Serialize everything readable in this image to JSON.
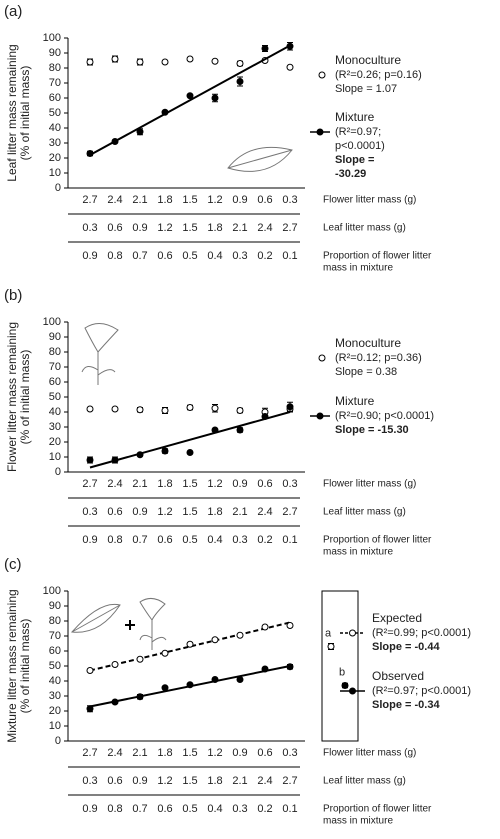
{
  "chart_data": [
    {
      "type": "scatter",
      "panel_label": "(a)",
      "ylabel": [
        "Leaf litter mass remaining",
        "(% of initial mass)"
      ],
      "ylim": [
        0,
        100
      ],
      "yticks": [
        0,
        10,
        20,
        30,
        40,
        50,
        60,
        70,
        80,
        90,
        100
      ],
      "categories": [
        "2.7",
        "2.4",
        "2.1",
        "1.8",
        "1.5",
        "1.2",
        "0.9",
        "0.6",
        "0.3"
      ],
      "row_label": "Flower litter mass (g)",
      "rows": [
        {
          "label": [
            "Leaf litter mass (g)"
          ],
          "values": [
            "0.3",
            "0.6",
            "0.9",
            "1.2",
            "1.5",
            "1.8",
            "2.1",
            "2.4",
            "2.7"
          ]
        },
        {
          "label": [
            "Proportion of flower litter",
            "mass in mixture"
          ],
          "values": [
            "0.9",
            "0.8",
            "0.7",
            "0.6",
            "0.5",
            "0.4",
            "0.3",
            "0.2",
            "0.1"
          ]
        }
      ],
      "series": [
        {
          "name": "Monoculture",
          "color": "#000000",
          "filled": false,
          "stats": [
            "(R²=0.26; p=0.16)"
          ],
          "slope": [
            "Slope = 1.07"
          ],
          "slope_bold": false,
          "values": [
            84,
            86,
            84,
            84,
            86,
            84.5,
            83,
            85,
            80.5
          ],
          "errors": [
            2,
            2,
            2,
            1,
            1,
            0.5,
            1.5,
            0.5,
            0.5
          ]
        },
        {
          "name": "Mixture",
          "color": "#000000",
          "filled": true,
          "stats": [
            "(R²=0.97;",
            "p<0.0001)"
          ],
          "slope": [
            "Slope =",
            "-30.29"
          ],
          "slope_bold": true,
          "values": [
            23,
            31,
            37.5,
            50.5,
            61.5,
            60,
            71,
            93,
            94.5
          ],
          "errors": [
            1.5,
            1,
            2,
            0.5,
            0.5,
            2.5,
            3,
            2,
            2.5
          ],
          "fit": [
            22,
            95
          ],
          "dashed": false
        }
      ]
    },
    {
      "type": "scatter",
      "panel_label": "(b)",
      "ylabel": [
        "Flower litter mass remaining",
        "(% of initial mass)"
      ],
      "ylim": [
        0,
        100
      ],
      "yticks": [
        0,
        10,
        20,
        30,
        40,
        50,
        60,
        70,
        80,
        90,
        100
      ],
      "categories": [
        "2.7",
        "2.4",
        "2.1",
        "1.8",
        "1.5",
        "1.2",
        "0.9",
        "0.6",
        "0.3"
      ],
      "row_label": "Flower litter mass (g)",
      "rows": [
        {
          "label": [
            "Leaf litter mass (g)"
          ],
          "values": [
            "0.3",
            "0.6",
            "0.9",
            "1.2",
            "1.5",
            "1.8",
            "2.1",
            "2.4",
            "2.7"
          ]
        },
        {
          "label": [
            "Proportion of flower litter",
            "mass in mixture"
          ],
          "values": [
            "0.9",
            "0.8",
            "0.7",
            "0.6",
            "0.5",
            "0.4",
            "0.3",
            "0.2",
            "0.1"
          ]
        }
      ],
      "series": [
        {
          "name": "Monoculture",
          "color": "#000000",
          "filled": false,
          "stats": [
            "(R²=0.12; p=0.36)"
          ],
          "slope": [
            "Slope = 0.38"
          ],
          "slope_bold": false,
          "values": [
            42,
            42,
            41.5,
            41,
            43,
            42.5,
            41,
            40,
            42
          ],
          "errors": [
            0.5,
            0.5,
            1.5,
            2,
            1.5,
            2.5,
            1.5,
            2.5,
            2
          ]
        },
        {
          "name": "Mixture",
          "color": "#000000",
          "filled": true,
          "stats": [
            "(R²=0.90; p<0.0001)"
          ],
          "slope": [
            "Slope = -15.30"
          ],
          "slope_bold": true,
          "values": [
            8,
            8,
            11.5,
            14,
            13,
            28,
            28,
            37,
            43.5
          ],
          "errors": [
            2,
            2,
            1,
            1.5,
            0.5,
            0.5,
            1.5,
            1,
            3
          ],
          "fit": [
            3,
            40
          ],
          "dashed": false
        }
      ]
    },
    {
      "type": "scatter",
      "panel_label": "(c)",
      "ylabel": [
        "Mixture litter mass remaining",
        "(% of initial mass)"
      ],
      "ylim": [
        0,
        100
      ],
      "yticks": [
        0,
        10,
        20,
        30,
        40,
        50,
        60,
        70,
        80,
        90,
        100
      ],
      "categories": [
        "2.7",
        "2.4",
        "2.1",
        "1.8",
        "1.5",
        "1.2",
        "0.9",
        "0.6",
        "0.3"
      ],
      "row_label": "Flower litter mass (g)",
      "rows": [
        {
          "label": [
            "Leaf litter mass (g)"
          ],
          "values": [
            "0.3",
            "0.6",
            "0.9",
            "1.2",
            "1.5",
            "1.8",
            "2.1",
            "2.4",
            "2.7"
          ]
        },
        {
          "label": [
            "Proportion of flower litter",
            "mass in mixture"
          ],
          "values": [
            "0.9",
            "0.8",
            "0.7",
            "0.6",
            "0.5",
            "0.4",
            "0.3",
            "0.2",
            "0.1"
          ]
        }
      ],
      "series": [
        {
          "name": "Expected",
          "color": "#000000",
          "filled": false,
          "stats": [
            "(R²=0.99; p<0.0001)"
          ],
          "slope": [
            "Slope = -0.44"
          ],
          "slope_bold": true,
          "values": [
            47,
            51,
            54.5,
            58.5,
            64.5,
            67.5,
            70.5,
            76,
            77
          ],
          "errors": [
            0.5,
            0.5,
            0.5,
            0.5,
            1,
            0.5,
            0.5,
            0.5,
            1
          ],
          "fit": [
            47,
            79
          ],
          "dashed": true
        },
        {
          "name": "Observed",
          "color": "#000000",
          "filled": true,
          "stats": [
            "(R²=0.97; p<0.0001)"
          ],
          "slope": [
            "Slope = -0.34"
          ],
          "slope_bold": true,
          "values": [
            21.5,
            26,
            29.5,
            35.5,
            37.5,
            41,
            41,
            48,
            49.5
          ],
          "errors": [
            2,
            0.5,
            1.5,
            0.5,
            0.5,
            0.5,
            0.5,
            0.5,
            1.5
          ],
          "fit": [
            23,
            50
          ],
          "dashed": false
        }
      ],
      "inset": {
        "labels": [
          "a",
          "b"
        ],
        "values": [
          63,
          37
        ],
        "errors": [
          2,
          1.5
        ]
      }
    }
  ]
}
